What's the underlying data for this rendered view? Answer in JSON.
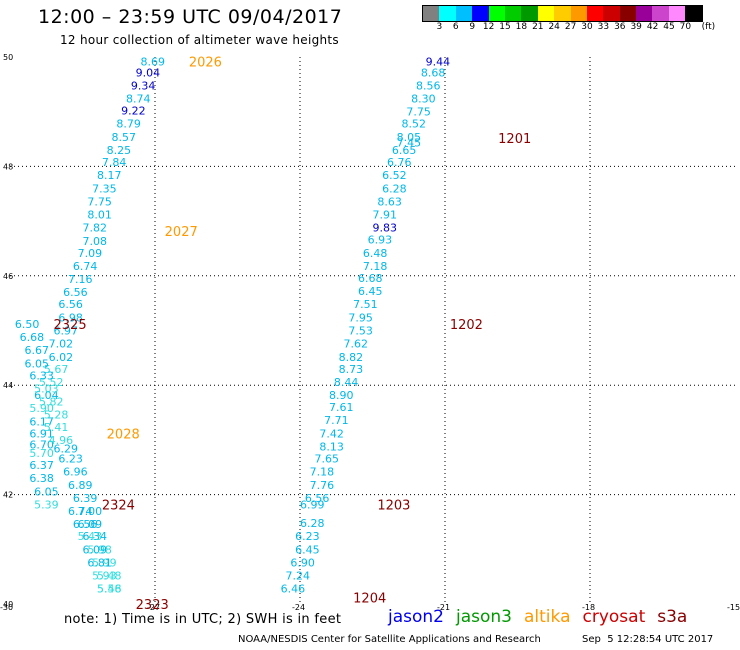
{
  "header": {
    "title": "12:00 – 23:59 UTC 09/04/2017",
    "subtitle": "12 hour collection of altimeter wave heights"
  },
  "legend": {
    "unit": "(ft)",
    "colors": [
      "#808080",
      "#00ffff",
      "#00bfff",
      "#0000ff",
      "#00ff00",
      "#00cc00",
      "#009900",
      "#ffff00",
      "#ffcc00",
      "#ff9900",
      "#ff0000",
      "#cc0000",
      "#880000",
      "#990099",
      "#cc44cc",
      "#ff88ff",
      "#000000"
    ],
    "labels": [
      "3",
      "6",
      "9",
      "12",
      "15",
      "18",
      "21",
      "24",
      "27",
      "30",
      "33",
      "36",
      "39",
      "42",
      "45",
      "70"
    ]
  },
  "footer": {
    "note": "note: 1) Time is in UTC; 2) SWH is in feet",
    "satellites": [
      {
        "name": "jason2",
        "color": "#0000ee"
      },
      {
        "name": "jason3",
        "color": "#009900"
      },
      {
        "name": "altika",
        "color": "#ff9900"
      },
      {
        "name": "cryosat",
        "color": "#cc0000"
      },
      {
        "name": "s3a",
        "color": "#880000"
      }
    ],
    "credit": "NOAA/NESDIS Center for Satellite Applications and Research",
    "timestamp": "Sep  5 12:28:54 UTC 2017"
  },
  "chart_data": {
    "type": "scatter",
    "title": "12 hour collection of altimeter wave heights",
    "xlim": [
      -30,
      -15
    ],
    "ylim": [
      40,
      50
    ],
    "x_ticks": [
      "-30",
      "-27",
      "-24",
      "-21",
      "-18",
      "-15"
    ],
    "y_ticks": [
      "40",
      "42",
      "44",
      "46",
      "48",
      "50"
    ],
    "grid": true,
    "value_colors": {
      "6": "#00bfff",
      "9": "#0000ff"
    },
    "time_labels": [
      {
        "text": "2026",
        "lon": -26.3,
        "lat": 49.92,
        "color": "#ff9900"
      },
      {
        "text": "2027",
        "lon": -26.8,
        "lat": 46.82,
        "color": "#ff9900"
      },
      {
        "text": "2028",
        "lon": -28.0,
        "lat": 43.12,
        "color": "#ff9900"
      },
      {
        "text": "2325",
        "lon": -29.1,
        "lat": 45.12,
        "color": "#880000"
      },
      {
        "text": "2324",
        "lon": -28.1,
        "lat": 41.82,
        "color": "#880000"
      },
      {
        "text": "2323",
        "lon": -27.4,
        "lat": 40.0,
        "color": "#880000"
      },
      {
        "text": "1201",
        "lon": -19.9,
        "lat": 48.52,
        "color": "#880000"
      },
      {
        "text": "1202",
        "lon": -20.9,
        "lat": 45.12,
        "color": "#880000"
      },
      {
        "text": "1203",
        "lon": -22.4,
        "lat": 41.82,
        "color": "#880000"
      },
      {
        "text": "1204",
        "lon": -22.9,
        "lat": 40.12,
        "color": "#880000"
      }
    ],
    "series": [
      {
        "name": "altika",
        "values": [
          {
            "lon": -27.3,
            "lat": 49.92,
            "swh": "8.69"
          },
          {
            "lon": -27.4,
            "lat": 49.72,
            "swh": "9.04"
          },
          {
            "lon": -27.5,
            "lat": 49.48,
            "swh": "9.34"
          },
          {
            "lon": -27.6,
            "lat": 49.24,
            "swh": "8.74"
          },
          {
            "lon": -27.7,
            "lat": 49.02,
            "swh": "9.22"
          },
          {
            "lon": -27.8,
            "lat": 48.78,
            "swh": "8.79"
          },
          {
            "lon": -27.9,
            "lat": 48.54,
            "swh": "8.57"
          },
          {
            "lon": -28.0,
            "lat": 48.3,
            "swh": "8.25"
          },
          {
            "lon": -28.1,
            "lat": 48.08,
            "swh": "7.84"
          },
          {
            "lon": -28.2,
            "lat": 47.84,
            "swh": "8.17"
          },
          {
            "lon": -28.3,
            "lat": 47.6,
            "swh": "7.35"
          },
          {
            "lon": -28.4,
            "lat": 47.36,
            "swh": "7.75"
          },
          {
            "lon": -28.4,
            "lat": 47.12,
            "swh": "8.01"
          },
          {
            "lon": -28.5,
            "lat": 46.88,
            "swh": "7.82"
          },
          {
            "lon": -28.5,
            "lat": 46.64,
            "swh": "7.08"
          },
          {
            "lon": -28.6,
            "lat": 46.42,
            "swh": "7.09"
          },
          {
            "lon": -28.7,
            "lat": 46.18,
            "swh": "6.74"
          },
          {
            "lon": -28.8,
            "lat": 45.94,
            "swh": "7.16"
          },
          {
            "lon": -28.9,
            "lat": 45.7,
            "swh": "6.56"
          },
          {
            "lon": -29.0,
            "lat": 45.48,
            "swh": "6.56"
          },
          {
            "lon": -29.0,
            "lat": 45.24,
            "swh": "6.98"
          },
          {
            "lon": -29.1,
            "lat": 45.0,
            "swh": "6.97"
          },
          {
            "lon": -29.2,
            "lat": 44.76,
            "swh": "7.02"
          },
          {
            "lon": -29.2,
            "lat": 44.52,
            "swh": "6.02"
          },
          {
            "lon": -29.3,
            "lat": 44.3,
            "swh": "5.67"
          },
          {
            "lon": -29.4,
            "lat": 44.06,
            "swh": "5.52"
          },
          {
            "lon": -29.5,
            "lat": 43.82,
            "swh": "6.04"
          },
          {
            "lon": -29.6,
            "lat": 43.58,
            "swh": "5.90"
          },
          {
            "lon": -29.6,
            "lat": 43.34,
            "swh": "6.17"
          },
          {
            "lon": -29.6,
            "lat": 43.12,
            "swh": "6.91"
          },
          {
            "lon": -29.6,
            "lat": 42.92,
            "swh": "6.70"
          },
          {
            "lon": -29.6,
            "lat": 42.76,
            "swh": "5.70"
          },
          {
            "lon": -29.6,
            "lat": 42.54,
            "swh": "6.37"
          },
          {
            "lon": -29.6,
            "lat": 42.3,
            "swh": "6.38"
          },
          {
            "lon": -29.5,
            "lat": 42.06,
            "swh": "6.05"
          },
          {
            "lon": -29.5,
            "lat": 41.82,
            "swh": "5.39"
          }
        ]
      },
      {
        "name": "cryosat",
        "values": [
          {
            "lon": -29.9,
            "lat": 45.12,
            "swh": "6.50"
          },
          {
            "lon": -29.8,
            "lat": 44.88,
            "swh": "6.68"
          },
          {
            "lon": -29.7,
            "lat": 44.64,
            "swh": "6.67"
          },
          {
            "lon": -29.7,
            "lat": 44.4,
            "swh": "6.05"
          },
          {
            "lon": -29.6,
            "lat": 44.18,
            "swh": "6.33"
          },
          {
            "lon": -29.5,
            "lat": 43.94,
            "swh": "5.03"
          },
          {
            "lon": -29.4,
            "lat": 43.7,
            "swh": "5.82"
          },
          {
            "lon": -29.3,
            "lat": 43.46,
            "swh": "5.28"
          },
          {
            "lon": -29.3,
            "lat": 43.24,
            "swh": "5.41"
          },
          {
            "lon": -29.2,
            "lat": 43.0,
            "swh": "4.96"
          },
          {
            "lon": -29.1,
            "lat": 42.84,
            "swh": "6.29"
          },
          {
            "lon": -29.0,
            "lat": 42.66,
            "swh": "6.23"
          },
          {
            "lon": -28.9,
            "lat": 42.42,
            "swh": "6.96"
          },
          {
            "lon": -28.8,
            "lat": 42.18,
            "swh": "6.89"
          },
          {
            "lon": -28.7,
            "lat": 41.94,
            "swh": "6.39"
          },
          {
            "lon": -28.6,
            "lat": 41.7,
            "swh": "7.00"
          },
          {
            "lon": -28.6,
            "lat": 41.46,
            "swh": "6.09"
          },
          {
            "lon": -28.5,
            "lat": 41.24,
            "swh": "6.34"
          },
          {
            "lon": -28.4,
            "lat": 41.0,
            "swh": "5.98"
          },
          {
            "lon": -28.3,
            "lat": 40.76,
            "swh": "5.99"
          },
          {
            "lon": -28.2,
            "lat": 40.52,
            "swh": "5.48"
          },
          {
            "lon": -28.2,
            "lat": 40.28,
            "swh": "5.48"
          }
        ]
      },
      {
        "name": "cryosat",
        "values": [
          {
            "lon": -28.8,
            "lat": 41.7,
            "swh": "6.74"
          },
          {
            "lon": -28.7,
            "lat": 41.46,
            "swh": "6.56"
          },
          {
            "lon": -28.6,
            "lat": 41.24,
            "swh": "5.43"
          },
          {
            "lon": -28.5,
            "lat": 41.0,
            "swh": "6.09"
          },
          {
            "lon": -28.4,
            "lat": 40.76,
            "swh": "6.81"
          },
          {
            "lon": -28.3,
            "lat": 40.52,
            "swh": "5.93"
          },
          {
            "lon": -28.2,
            "lat": 40.28,
            "swh": "5.56"
          }
        ]
      },
      {
        "name": "s3a",
        "values": [
          {
            "lon": -21.4,
            "lat": 49.92,
            "swh": "9.44"
          },
          {
            "lon": -21.5,
            "lat": 49.72,
            "swh": "8.68"
          },
          {
            "lon": -21.6,
            "lat": 49.48,
            "swh": "8.56"
          },
          {
            "lon": -21.7,
            "lat": 49.24,
            "swh": "8.30"
          },
          {
            "lon": -21.8,
            "lat": 49.0,
            "swh": "7.75"
          },
          {
            "lon": -21.9,
            "lat": 48.78,
            "swh": "8.52"
          },
          {
            "lon": -22.0,
            "lat": 48.54,
            "swh": "8.05"
          },
          {
            "lon": -22.0,
            "lat": 48.44,
            "swh": "7.45"
          },
          {
            "lon": -22.1,
            "lat": 48.3,
            "swh": "6.65"
          },
          {
            "lon": -22.2,
            "lat": 48.08,
            "swh": "6.76"
          },
          {
            "lon": -22.3,
            "lat": 47.84,
            "swh": "6.52"
          },
          {
            "lon": -22.3,
            "lat": 47.6,
            "swh": "6.28"
          },
          {
            "lon": -22.4,
            "lat": 47.36,
            "swh": "8.63"
          },
          {
            "lon": -22.5,
            "lat": 47.12,
            "swh": "7.91"
          },
          {
            "lon": -22.5,
            "lat": 46.88,
            "swh": "9.83"
          },
          {
            "lon": -22.6,
            "lat": 46.66,
            "swh": "6.93"
          },
          {
            "lon": -22.7,
            "lat": 46.42,
            "swh": "6.48"
          },
          {
            "lon": -22.7,
            "lat": 46.18,
            "swh": "7.18"
          },
          {
            "lon": -22.8,
            "lat": 45.96,
            "swh": "6.68"
          },
          {
            "lon": -22.8,
            "lat": 45.72,
            "swh": "6.45"
          },
          {
            "lon": -22.9,
            "lat": 45.48,
            "swh": "7.51"
          },
          {
            "lon": -23.0,
            "lat": 45.24,
            "swh": "7.95"
          },
          {
            "lon": -23.0,
            "lat": 45.0,
            "swh": "7.53"
          },
          {
            "lon": -23.1,
            "lat": 44.76,
            "swh": "7.62"
          },
          {
            "lon": -23.2,
            "lat": 44.52,
            "swh": "8.82"
          },
          {
            "lon": -23.2,
            "lat": 44.3,
            "swh": "8.73"
          },
          {
            "lon": -23.3,
            "lat": 44.06,
            "swh": "8.44"
          },
          {
            "lon": -23.4,
            "lat": 43.82,
            "swh": "8.90"
          },
          {
            "lon": -23.4,
            "lat": 43.6,
            "swh": "7.61"
          },
          {
            "lon": -23.5,
            "lat": 43.36,
            "swh": "7.71"
          },
          {
            "lon": -23.6,
            "lat": 43.12,
            "swh": "7.42"
          },
          {
            "lon": -23.6,
            "lat": 42.88,
            "swh": "8.13"
          },
          {
            "lon": -23.7,
            "lat": 42.66,
            "swh": "7.65"
          },
          {
            "lon": -23.8,
            "lat": 42.42,
            "swh": "7.18"
          },
          {
            "lon": -23.8,
            "lat": 42.18,
            "swh": "7.76"
          },
          {
            "lon": -23.9,
            "lat": 41.94,
            "swh": "6.56"
          },
          {
            "lon": -24.0,
            "lat": 41.82,
            "swh": "6.99"
          },
          {
            "lon": -24.0,
            "lat": 41.48,
            "swh": "6.28"
          },
          {
            "lon": -24.1,
            "lat": 41.24,
            "swh": "6.23"
          },
          {
            "lon": -24.1,
            "lat": 41.0,
            "swh": "6.45"
          },
          {
            "lon": -24.2,
            "lat": 40.76,
            "swh": "6.90"
          },
          {
            "lon": -24.3,
            "lat": 40.52,
            "swh": "7.24"
          },
          {
            "lon": -24.4,
            "lat": 40.28,
            "swh": "6.46"
          }
        ]
      }
    ]
  }
}
